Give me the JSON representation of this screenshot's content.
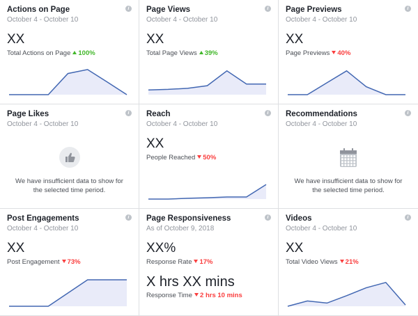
{
  "sparkline_ylim": [
    0,
    100
  ],
  "cards": [
    {
      "title": "Actions on Page",
      "subtitle": "October 4 - October 10",
      "metrics": [
        {
          "value": "XX",
          "label": "Total Actions on Page",
          "change": "100%",
          "direction": "up"
        }
      ],
      "sparkline": [
        0,
        0,
        0,
        80,
        95,
        48,
        0
      ]
    },
    {
      "title": "Page Views",
      "subtitle": "October 4 - October 10",
      "metrics": [
        {
          "value": "XX",
          "label": "Total Page Views",
          "change": "39%",
          "direction": "up"
        }
      ],
      "sparkline": [
        18,
        20,
        24,
        34,
        90,
        40,
        40
      ]
    },
    {
      "title": "Page Previews",
      "subtitle": "October 4 - October 10",
      "metrics": [
        {
          "value": "XX",
          "label": "Page Previews",
          "change": "40%",
          "direction": "down"
        }
      ],
      "sparkline": [
        0,
        0,
        45,
        90,
        30,
        0,
        0
      ]
    },
    {
      "title": "Page Likes",
      "subtitle": "October 4 - October 10",
      "icon": "like",
      "message": "We have insufficient data to show for the selected time period."
    },
    {
      "title": "Reach",
      "subtitle": "October 4 - October 10",
      "metrics": [
        {
          "value": "XX",
          "label": "People Reached",
          "change": "50%",
          "direction": "down"
        }
      ],
      "sparkline": [
        0,
        0,
        3,
        5,
        8,
        8,
        55
      ]
    },
    {
      "title": "Recommendations",
      "subtitle": "October 4 - October 10",
      "icon": "calendar",
      "message": "We have insufficient data to show for the selected time period."
    },
    {
      "title": "Post Engagements",
      "subtitle": "October 4 - October 10",
      "metrics": [
        {
          "value": "XX",
          "label": "Post Engagement",
          "change": "73%",
          "direction": "down"
        }
      ],
      "sparkline": [
        0,
        0,
        0,
        50,
        100,
        100,
        100
      ]
    },
    {
      "title": "Page Responsiveness",
      "subtitle": "As of October 9, 2018",
      "metrics": [
        {
          "value": "XX%",
          "label": "Response Rate",
          "change": "17%",
          "direction": "down"
        },
        {
          "value": "X hrs XX mins",
          "label": "Response Time",
          "change": "2 hrs 10 mins",
          "direction": "down"
        }
      ]
    },
    {
      "title": "Videos",
      "subtitle": "October 4 - October 10",
      "metrics": [
        {
          "value": "XX",
          "label": "Total Video Views",
          "change": "21%",
          "direction": "down"
        }
      ],
      "sparkline": [
        0,
        20,
        12,
        40,
        70,
        90,
        5
      ]
    }
  ]
}
